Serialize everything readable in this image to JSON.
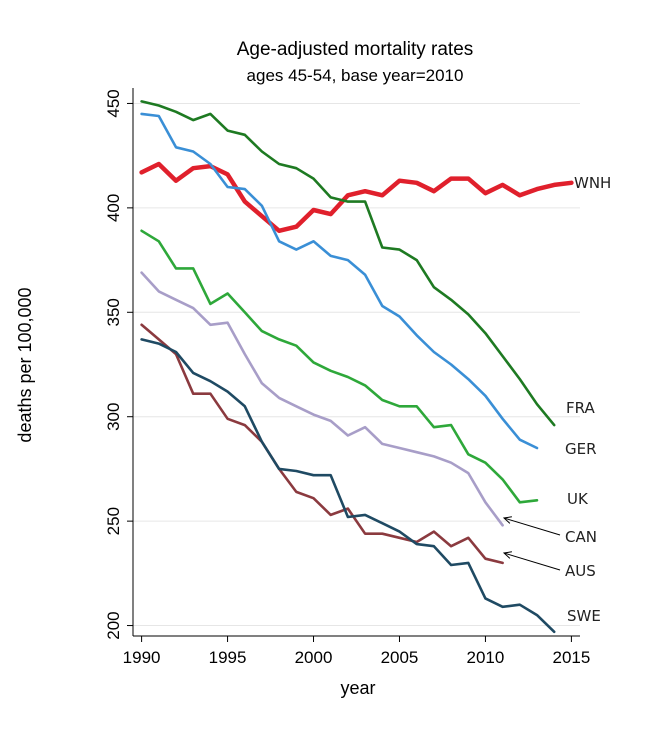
{
  "chart_data": {
    "type": "line",
    "title": "Age-adjusted mortality rates",
    "subtitle": "ages 45-54, base year=2010",
    "xlabel": "year",
    "ylabel": "deaths per 100,000",
    "xlim": [
      1989.5,
      2015.5
    ],
    "ylim": [
      195,
      455
    ],
    "xticks": [
      1990,
      1995,
      2000,
      2005,
      2010,
      2015
    ],
    "yticks": [
      200,
      250,
      300,
      350,
      400,
      450
    ],
    "grid": "horizontal",
    "legend": "none (series labelled at right end of lines)",
    "series": [
      {
        "name": "WNH",
        "color": "#e0202c",
        "x": [
          1990,
          1991,
          1992,
          1993,
          1994,
          1995,
          1996,
          1997,
          1998,
          1999,
          2000,
          2001,
          2002,
          2003,
          2004,
          2005,
          2006,
          2007,
          2008,
          2009,
          2010,
          2011,
          2012,
          2013,
          2014,
          2015
        ],
        "values": [
          417,
          421,
          413,
          419,
          420,
          416,
          403,
          396,
          389,
          391,
          399,
          397,
          406,
          408,
          406,
          413,
          412,
          408,
          414,
          414,
          407,
          411,
          406,
          409,
          411,
          412
        ]
      },
      {
        "name": "FRA",
        "color": "#1e7a22",
        "x": [
          1990,
          1991,
          1992,
          1993,
          1994,
          1995,
          1996,
          1997,
          1998,
          1999,
          2000,
          2001,
          2002,
          2003,
          2004,
          2005,
          2006,
          2007,
          2008,
          2009,
          2010,
          2011,
          2012,
          2013,
          2014
        ],
        "values": [
          451,
          449,
          446,
          442,
          445,
          437,
          435,
          427,
          421,
          419,
          414,
          405,
          403,
          403,
          381,
          380,
          375,
          362,
          356,
          349,
          340,
          329,
          318,
          306,
          296
        ]
      },
      {
        "name": "GER",
        "color": "#3a8fd6",
        "x": [
          1990,
          1991,
          1992,
          1993,
          1994,
          1995,
          1996,
          1997,
          1998,
          1999,
          2000,
          2001,
          2002,
          2003,
          2004,
          2005,
          2006,
          2007,
          2008,
          2009,
          2010,
          2011,
          2012,
          2013
        ],
        "values": [
          445,
          444,
          429,
          427,
          421,
          410,
          409,
          401,
          384,
          380,
          384,
          377,
          375,
          368,
          353,
          348,
          339,
          331,
          325,
          318,
          310,
          299,
          289,
          285
        ]
      },
      {
        "name": "UK",
        "color": "#2ea83a",
        "x": [
          1990,
          1991,
          1992,
          1993,
          1994,
          1995,
          1996,
          1997,
          1998,
          1999,
          2000,
          2001,
          2002,
          2003,
          2004,
          2005,
          2006,
          2007,
          2008,
          2009,
          2010,
          2011,
          2012,
          2013
        ],
        "values": [
          389,
          384,
          371,
          371,
          354,
          359,
          350,
          341,
          337,
          334,
          326,
          322,
          319,
          315,
          308,
          305,
          305,
          295,
          296,
          282,
          278,
          270,
          259,
          260
        ]
      },
      {
        "name": "CAN",
        "color": "#a89ec8",
        "x": [
          1990,
          1991,
          1992,
          1993,
          1994,
          1995,
          1996,
          1997,
          1998,
          1999,
          2000,
          2001,
          2002,
          2003,
          2004,
          2005,
          2006,
          2007,
          2008,
          2009,
          2010,
          2011
        ],
        "values": [
          369,
          360,
          356,
          352,
          344,
          345,
          330,
          316,
          309,
          305,
          301,
          298,
          291,
          295,
          287,
          285,
          283,
          281,
          278,
          273,
          259,
          248
        ]
      },
      {
        "name": "AUS",
        "color": "#8b3a3f",
        "x": [
          1990,
          1991,
          1992,
          1993,
          1994,
          1995,
          1996,
          1997,
          1998,
          1999,
          2000,
          2001,
          2002,
          2003,
          2004,
          2005,
          2006,
          2007,
          2008,
          2009,
          2010,
          2011
        ],
        "values": [
          344,
          337,
          330,
          311,
          311,
          299,
          296,
          288,
          275,
          264,
          261,
          253,
          256,
          244,
          244,
          242,
          240,
          245,
          238,
          242,
          232,
          230
        ]
      },
      {
        "name": "SWE",
        "color": "#1f4a63",
        "x": [
          1990,
          1991,
          1992,
          1993,
          1994,
          1995,
          1996,
          1997,
          1998,
          1999,
          2000,
          2001,
          2002,
          2003,
          2004,
          2005,
          2006,
          2007,
          2008,
          2009,
          2010,
          2011,
          2012,
          2013,
          2014
        ],
        "values": [
          337,
          335,
          331,
          321,
          317,
          312,
          305,
          288,
          275,
          274,
          272,
          272,
          252,
          253,
          249,
          245,
          239,
          238,
          229,
          230,
          213,
          209,
          210,
          205,
          197
        ]
      }
    ],
    "label_positions_note": "labels drawn at right of plot",
    "labels": {
      "WNH": "WNH",
      "FRA": "FRA",
      "GER": "GER",
      "UK": "UK",
      "CAN": "CAN",
      "AUS": "AUS",
      "SWE": "SWE"
    }
  }
}
